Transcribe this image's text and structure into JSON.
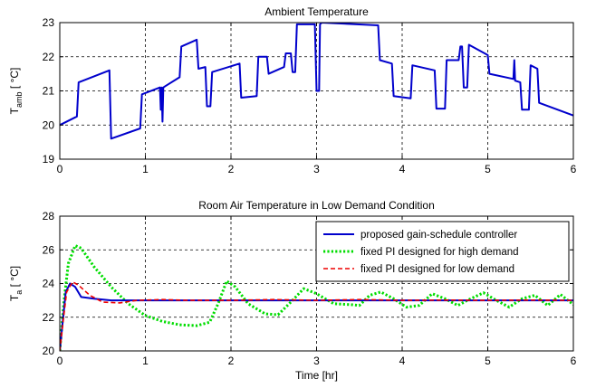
{
  "chart_data": [
    {
      "type": "line",
      "title": "Ambient Temperature",
      "ylabel_main": "T",
      "ylabel_sub": "amb",
      "ylabel_unit": " [ °C]",
      "xlim": [
        0,
        6
      ],
      "ylim": [
        19,
        23
      ],
      "xticks": [
        0,
        1,
        2,
        3,
        4,
        5,
        6
      ],
      "yticks": [
        19,
        20,
        21,
        22,
        23
      ],
      "grid": true,
      "series": [
        {
          "color": "#0000cc",
          "points": [
            [
              0,
              20.0
            ],
            [
              0.2,
              20.25
            ],
            [
              0.22,
              21.25
            ],
            [
              0.58,
              21.6
            ],
            [
              0.6,
              19.6
            ],
            [
              0.94,
              19.9
            ],
            [
              0.96,
              20.9
            ],
            [
              1.17,
              21.1
            ],
            [
              1.18,
              20.45
            ],
            [
              1.19,
              21.1
            ],
            [
              1.2,
              20.1
            ],
            [
              1.21,
              21.1
            ],
            [
              1.24,
              21.15
            ],
            [
              1.4,
              21.4
            ],
            [
              1.42,
              22.3
            ],
            [
              1.6,
              22.5
            ],
            [
              1.62,
              21.65
            ],
            [
              1.7,
              21.7
            ],
            [
              1.72,
              20.55
            ],
            [
              1.76,
              20.55
            ],
            [
              1.78,
              21.55
            ],
            [
              2.1,
              21.8
            ],
            [
              2.12,
              20.8
            ],
            [
              2.3,
              20.85
            ],
            [
              2.32,
              22.0
            ],
            [
              2.42,
              22.0
            ],
            [
              2.44,
              21.5
            ],
            [
              2.62,
              21.7
            ],
            [
              2.64,
              22.1
            ],
            [
              2.7,
              22.1
            ],
            [
              2.72,
              21.55
            ],
            [
              2.75,
              21.55
            ],
            [
              2.77,
              22.95
            ],
            [
              2.98,
              22.95
            ],
            [
              3.0,
              21.0
            ],
            [
              3.03,
              21.0
            ],
            [
              3.04,
              22.95
            ],
            [
              3.06,
              23.0
            ],
            [
              3.72,
              22.92
            ],
            [
              3.74,
              21.9
            ],
            [
              3.88,
              21.8
            ],
            [
              3.9,
              20.85
            ],
            [
              4.1,
              20.78
            ],
            [
              4.12,
              21.75
            ],
            [
              4.38,
              21.6
            ],
            [
              4.4,
              20.48
            ],
            [
              4.5,
              20.48
            ],
            [
              4.52,
              21.9
            ],
            [
              4.66,
              21.9
            ],
            [
              4.68,
              22.3
            ],
            [
              4.7,
              22.3
            ],
            [
              4.72,
              21.1
            ],
            [
              4.76,
              21.1
            ],
            [
              4.78,
              22.35
            ],
            [
              5.0,
              22.05
            ],
            [
              5.02,
              21.5
            ],
            [
              5.3,
              21.35
            ],
            [
              5.31,
              21.9
            ],
            [
              5.32,
              21.3
            ],
            [
              5.38,
              21.25
            ],
            [
              5.4,
              20.45
            ],
            [
              5.48,
              20.45
            ],
            [
              5.5,
              21.75
            ],
            [
              5.58,
              21.65
            ],
            [
              5.6,
              20.65
            ],
            [
              6.0,
              20.28
            ]
          ]
        }
      ]
    },
    {
      "type": "line",
      "title": "Room Air Temperature in Low Demand Condition",
      "ylabel_main": "T",
      "ylabel_sub": "a",
      "ylabel_unit": " [ °C]",
      "xlabel": "Time [hr]",
      "xlim": [
        0,
        6
      ],
      "ylim": [
        20,
        28
      ],
      "xticks": [
        0,
        1,
        2,
        3,
        4,
        5,
        6
      ],
      "yticks": [
        20,
        22,
        24,
        26,
        28
      ],
      "grid": true,
      "legend_position": "top-right",
      "series": [
        {
          "name": "proposed gain-schedule controller",
          "color": "#0000cc",
          "dash": "solid",
          "points": [
            [
              0,
              20.0
            ],
            [
              0.03,
              21.5
            ],
            [
              0.07,
              23.5
            ],
            [
              0.12,
              24.0
            ],
            [
              0.18,
              23.8
            ],
            [
              0.25,
              23.2
            ],
            [
              0.4,
              23.1
            ],
            [
              0.6,
              23.0
            ],
            [
              1.0,
              23.0
            ],
            [
              2.0,
              23.0
            ],
            [
              3.0,
              23.0
            ],
            [
              4.0,
              23.0
            ],
            [
              5.0,
              23.0
            ],
            [
              6.0,
              23.0
            ]
          ]
        },
        {
          "name": "fixed PI designed for high demand",
          "color": "#00dd00",
          "dash": "dotted",
          "points": [
            [
              0,
              20.0
            ],
            [
              0.05,
              23.0
            ],
            [
              0.1,
              25.2
            ],
            [
              0.18,
              26.25
            ],
            [
              0.25,
              26.1
            ],
            [
              0.4,
              25.0
            ],
            [
              0.6,
              23.8
            ],
            [
              0.8,
              22.8
            ],
            [
              1.0,
              22.1
            ],
            [
              1.2,
              21.75
            ],
            [
              1.4,
              21.55
            ],
            [
              1.6,
              21.5
            ],
            [
              1.75,
              21.7
            ],
            [
              1.85,
              22.8
            ],
            [
              1.95,
              24.15
            ],
            [
              2.05,
              23.8
            ],
            [
              2.2,
              22.8
            ],
            [
              2.4,
              22.2
            ],
            [
              2.55,
              22.15
            ],
            [
              2.7,
              22.9
            ],
            [
              2.85,
              23.7
            ],
            [
              3.0,
              23.4
            ],
            [
              3.2,
              22.8
            ],
            [
              3.4,
              22.75
            ],
            [
              3.5,
              22.7
            ],
            [
              3.62,
              23.3
            ],
            [
              3.75,
              23.5
            ],
            [
              3.9,
              23.1
            ],
            [
              4.05,
              22.6
            ],
            [
              4.2,
              22.7
            ],
            [
              4.35,
              23.4
            ],
            [
              4.5,
              23.1
            ],
            [
              4.65,
              22.7
            ],
            [
              4.8,
              23.1
            ],
            [
              4.95,
              23.45
            ],
            [
              5.1,
              23.0
            ],
            [
              5.25,
              22.6
            ],
            [
              5.4,
              23.1
            ],
            [
              5.55,
              23.3
            ],
            [
              5.7,
              22.7
            ],
            [
              5.85,
              23.35
            ],
            [
              6.0,
              22.75
            ]
          ]
        },
        {
          "name": "fixed PI designed for low demand",
          "color": "#ee0000",
          "dash": "dashed",
          "points": [
            [
              0,
              20.0
            ],
            [
              0.04,
              21.8
            ],
            [
              0.08,
              23.5
            ],
            [
              0.15,
              24.1
            ],
            [
              0.22,
              23.9
            ],
            [
              0.35,
              23.3
            ],
            [
              0.5,
              22.9
            ],
            [
              0.7,
              22.85
            ],
            [
              0.9,
              23.0
            ],
            [
              1.2,
              23.05
            ],
            [
              1.5,
              23.0
            ],
            [
              2.0,
              23.0
            ],
            [
              2.5,
              23.05
            ],
            [
              3.0,
              23.0
            ],
            [
              3.5,
              23.05
            ],
            [
              4.0,
              23.0
            ],
            [
              4.5,
              23.02
            ],
            [
              5.0,
              23.0
            ],
            [
              5.5,
              23.02
            ],
            [
              6.0,
              23.0
            ]
          ]
        }
      ]
    }
  ]
}
